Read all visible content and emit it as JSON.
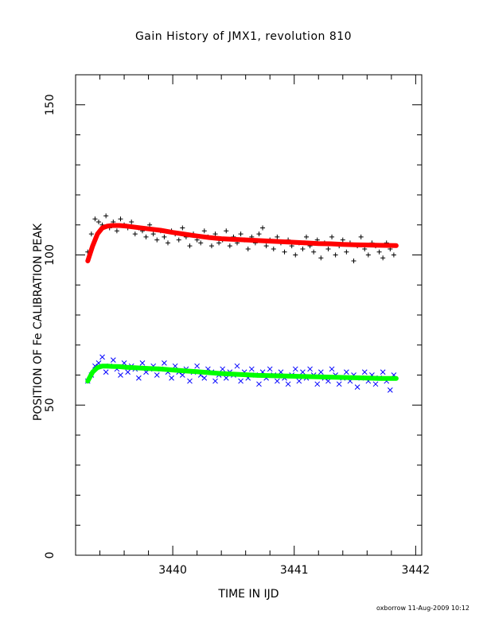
{
  "chart_data": {
    "type": "scatter",
    "title": "Gain History of JMX1, revolution 810",
    "xlabel": "TIME IN IJD",
    "ylabel": "POSITION OF Fe CALIBRATION PEAK",
    "xlim": [
      3439.2,
      3442.05
    ],
    "ylim": [
      0,
      160
    ],
    "xticks": [
      3440,
      3441,
      3442
    ],
    "yticks": [
      0,
      50,
      100,
      150
    ],
    "grid": false,
    "series": [
      {
        "marker": "+",
        "color": "#000000",
        "x": [
          3439.3,
          3439.33,
          3439.36,
          3439.39,
          3439.42,
          3439.45,
          3439.48,
          3439.51,
          3439.54,
          3439.57,
          3439.6,
          3439.63,
          3439.66,
          3439.69,
          3439.72,
          3439.75,
          3439.78,
          3439.81,
          3439.84,
          3439.87,
          3439.9,
          3439.93,
          3439.96,
          3439.99,
          3440.02,
          3440.05,
          3440.08,
          3440.11,
          3440.14,
          3440.17,
          3440.2,
          3440.23,
          3440.26,
          3440.29,
          3440.32,
          3440.35,
          3440.38,
          3440.41,
          3440.44,
          3440.47,
          3440.5,
          3440.53,
          3440.56,
          3440.59,
          3440.62,
          3440.65,
          3440.68,
          3440.71,
          3440.74,
          3440.77,
          3440.8,
          3440.83,
          3440.86,
          3440.89,
          3440.92,
          3440.95,
          3440.98,
          3441.01,
          3441.04,
          3441.07,
          3441.1,
          3441.13,
          3441.16,
          3441.19,
          3441.22,
          3441.25,
          3441.28,
          3441.31,
          3441.34,
          3441.37,
          3441.4,
          3441.43,
          3441.46,
          3441.49,
          3441.52,
          3441.55,
          3441.58,
          3441.61,
          3441.64,
          3441.67,
          3441.7,
          3441.73,
          3441.76,
          3441.79,
          3441.82
        ],
        "y": [
          101,
          107,
          112,
          111,
          110,
          113,
          109,
          111,
          108,
          112,
          110,
          109,
          111,
          107,
          109,
          108,
          106,
          110,
          107,
          105,
          108,
          106,
          104,
          108,
          107,
          105,
          109,
          106,
          103,
          107,
          105,
          104,
          108,
          106,
          103,
          107,
          104,
          105,
          108,
          103,
          106,
          104,
          107,
          105,
          102,
          106,
          104,
          107,
          109,
          103,
          105,
          102,
          106,
          104,
          101,
          105,
          103,
          100,
          104,
          102,
          106,
          103,
          101,
          105,
          99,
          104,
          102,
          106,
          100,
          103,
          105,
          101,
          104,
          98,
          103,
          106,
          102,
          100,
          104,
          103,
          101,
          99,
          104,
          102,
          100
        ]
      },
      {
        "marker": "x",
        "color": "#0000ff",
        "x": [
          3439.3,
          3439.33,
          3439.36,
          3439.39,
          3439.42,
          3439.45,
          3439.48,
          3439.51,
          3439.54,
          3439.57,
          3439.6,
          3439.63,
          3439.66,
          3439.69,
          3439.72,
          3439.75,
          3439.78,
          3439.81,
          3439.84,
          3439.87,
          3439.9,
          3439.93,
          3439.96,
          3439.99,
          3440.02,
          3440.05,
          3440.08,
          3440.11,
          3440.14,
          3440.17,
          3440.2,
          3440.23,
          3440.26,
          3440.29,
          3440.32,
          3440.35,
          3440.38,
          3440.41,
          3440.44,
          3440.47,
          3440.5,
          3440.53,
          3440.56,
          3440.59,
          3440.62,
          3440.65,
          3440.68,
          3440.71,
          3440.74,
          3440.77,
          3440.8,
          3440.83,
          3440.86,
          3440.89,
          3440.92,
          3440.95,
          3440.98,
          3441.01,
          3441.04,
          3441.07,
          3441.1,
          3441.13,
          3441.16,
          3441.19,
          3441.22,
          3441.25,
          3441.28,
          3441.31,
          3441.34,
          3441.37,
          3441.4,
          3441.43,
          3441.46,
          3441.49,
          3441.52,
          3441.55,
          3441.58,
          3441.61,
          3441.64,
          3441.67,
          3441.7,
          3441.73,
          3441.76,
          3441.79,
          3441.82
        ],
        "y": [
          58,
          60,
          63,
          64,
          66,
          61,
          63,
          65,
          62,
          60,
          64,
          61,
          63,
          62,
          59,
          64,
          61,
          62,
          63,
          60,
          62,
          64,
          61,
          59,
          63,
          61,
          60,
          62,
          58,
          61,
          63,
          60,
          59,
          62,
          61,
          58,
          60,
          62,
          59,
          61,
          60,
          63,
          58,
          61,
          59,
          62,
          60,
          57,
          61,
          59,
          62,
          60,
          58,
          61,
          59,
          57,
          60,
          62,
          58,
          61,
          59,
          62,
          60,
          57,
          61,
          59,
          58,
          62,
          60,
          57,
          59,
          61,
          58,
          60,
          56,
          59,
          61,
          58,
          60,
          57,
          59,
          61,
          58,
          55,
          60
        ]
      },
      {
        "name": "",
        "marker": "line",
        "color": "#ff0000",
        "x": [
          3439.3,
          3439.34,
          3439.38,
          3439.42,
          3439.46,
          3439.5,
          3439.56,
          3439.62,
          3439.7,
          3439.8,
          3439.9,
          3440.0,
          3440.1,
          3440.2,
          3440.3,
          3440.4,
          3440.5,
          3440.6,
          3440.7,
          3440.8,
          3440.9,
          3441.0,
          3441.1,
          3441.2,
          3441.3,
          3441.4,
          3441.5,
          3441.6,
          3441.7,
          3441.84
        ],
        "y": [
          98,
          103,
          107,
          109,
          109.6,
          109.8,
          109.8,
          109.6,
          109.2,
          108.7,
          108.2,
          107.5,
          106.9,
          106.3,
          105.8,
          105.4,
          105.2,
          105.0,
          104.8,
          104.6,
          104.4,
          104.2,
          104.0,
          103.8,
          103.7,
          103.5,
          103.4,
          103.3,
          103.2,
          103.1
        ]
      },
      {
        "marker": "line",
        "color": "#00ff00",
        "x": [
          3439.3,
          3439.34,
          3439.38,
          3439.42,
          3439.46,
          3439.5,
          3439.56,
          3439.62,
          3439.7,
          3439.8,
          3439.9,
          3440.0,
          3440.1,
          3440.2,
          3440.3,
          3440.4,
          3440.5,
          3440.6,
          3440.7,
          3440.8,
          3440.9,
          3441.0,
          3441.1,
          3441.2,
          3441.3,
          3441.4,
          3441.5,
          3441.6,
          3441.7,
          3441.84
        ],
        "y": [
          58,
          61,
          62.5,
          63,
          63,
          62.9,
          62.8,
          62.6,
          62.4,
          62.2,
          62.0,
          61.7,
          61.4,
          61.1,
          60.8,
          60.5,
          60.3,
          60.1,
          59.9,
          59.8,
          59.7,
          59.6,
          59.5,
          59.4,
          59.3,
          59.2,
          59.1,
          59.0,
          58.9,
          58.9
        ]
      }
    ]
  },
  "footer": "oxborrow 11-Aug-2009 10:12"
}
